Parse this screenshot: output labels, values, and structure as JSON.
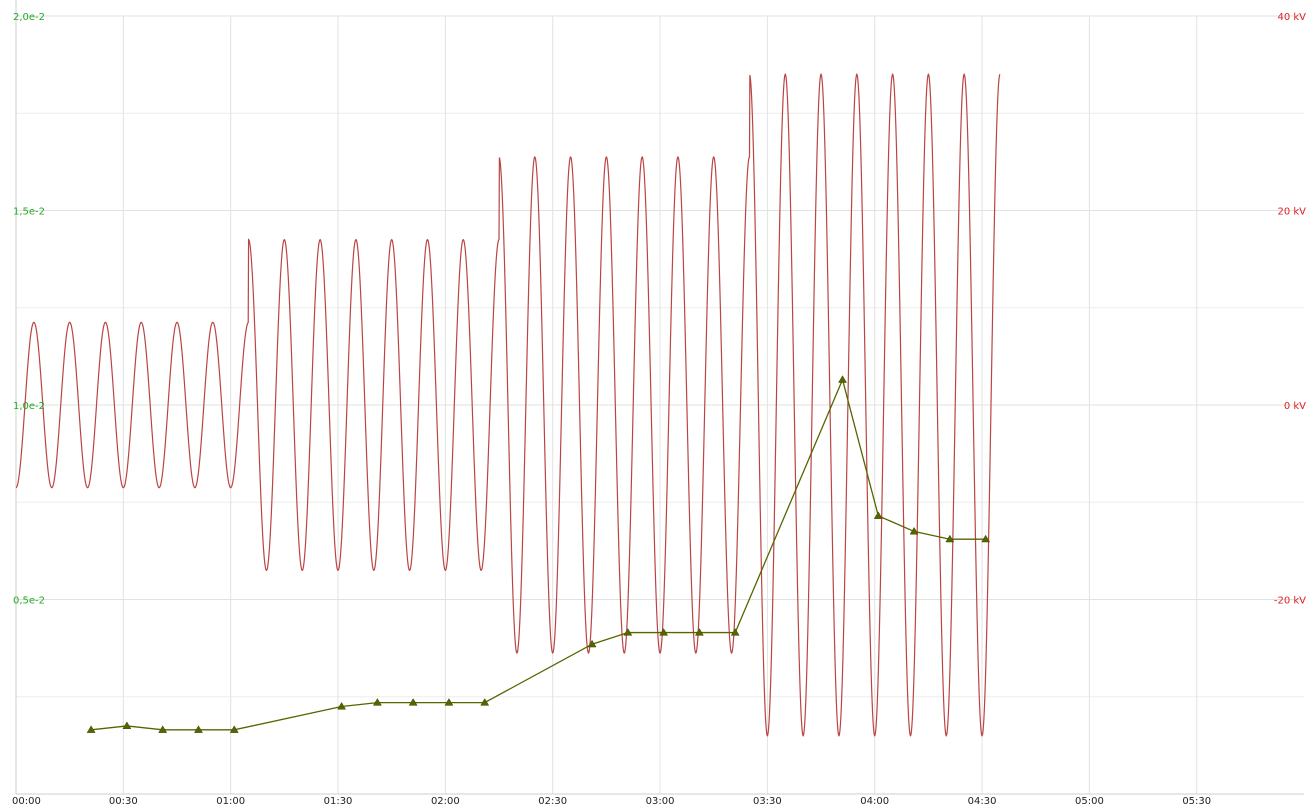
{
  "chart_data": {
    "type": "line",
    "title": "",
    "xlabel": "",
    "ylabel": "",
    "x_ticks": [
      "00:00",
      "00:30",
      "01:00",
      "01:30",
      "02:00",
      "02:30",
      "03:00",
      "03:30",
      "04:00",
      "04:30",
      "05:00",
      "05:30"
    ],
    "x_range_minutes": [
      0,
      360
    ],
    "y_left": {
      "ticks": [
        "0,5e-2",
        "1,0e-2",
        "1,5e-2",
        "2,0e-2"
      ],
      "tick_values": [
        0.005,
        0.01,
        0.015,
        0.02
      ],
      "range": [
        0.0,
        0.02
      ],
      "color": "#22aa22"
    },
    "y_right": {
      "ticks": [
        "-20 kV",
        "0 kV",
        "20 kV",
        "40 kV"
      ],
      "tick_values": [
        -20,
        0,
        20,
        40
      ],
      "range": [
        -40,
        40
      ],
      "color": "#dd2222"
    },
    "grid": true,
    "series": [
      {
        "axis": "left",
        "color": "#556600",
        "marker": "triangle",
        "x_minutes": [
          21,
          31,
          41,
          51,
          61,
          91,
          101,
          111,
          121,
          131,
          161,
          171,
          181,
          191,
          201,
          231,
          241,
          251,
          261,
          271
        ],
        "values": [
          0.00165,
          0.00175,
          0.00165,
          0.00165,
          0.00165,
          0.00225,
          0.00235,
          0.00235,
          0.00235,
          0.00235,
          0.00385,
          0.00415,
          0.00415,
          0.00415,
          0.00415,
          0.01065,
          0.00715,
          0.00675,
          0.00655,
          0.00655
        ]
      },
      {
        "axis": "right",
        "color": "#bb4444",
        "type": "oscillation",
        "x_start_minutes": 0,
        "x_end_minutes": 275,
        "period_minutes": 10,
        "segments": [
          {
            "x_start": 0,
            "x_end": 65,
            "max_kV": 8.5,
            "min_kV": -8.5
          },
          {
            "x_start": 65,
            "x_end": 135,
            "max_kV": 17,
            "min_kV": -17
          },
          {
            "x_start": 135,
            "x_end": 205,
            "max_kV": 25.5,
            "min_kV": -25.5
          },
          {
            "x_start": 205,
            "x_end": 275,
            "max_kV": 34,
            "min_kV": -34
          }
        ]
      }
    ]
  }
}
